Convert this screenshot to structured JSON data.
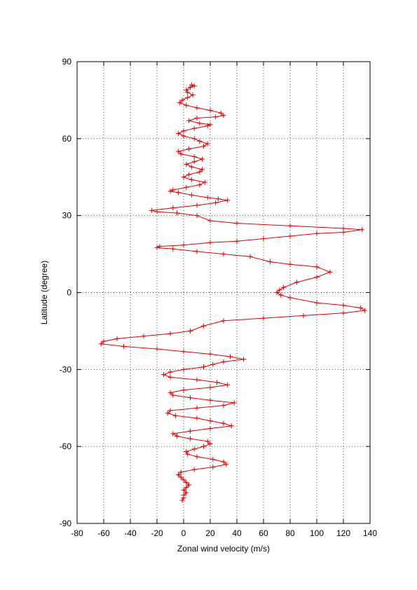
{
  "chart_data": {
    "type": "line",
    "title": "",
    "xlabel": "Zonal wind velocity (m/s)",
    "ylabel": "Latitude (degree)",
    "xlim": [
      -80,
      140
    ],
    "ylim": [
      -90,
      90
    ],
    "xticks": [
      -80,
      -60,
      -40,
      -20,
      0,
      20,
      40,
      60,
      80,
      100,
      120,
      140
    ],
    "yticks": [
      -90,
      -60,
      -30,
      0,
      30,
      60,
      90
    ],
    "grid": true,
    "marker": "plus",
    "series_color": "#e00000",
    "series": [
      {
        "points": [
          [
            6,
            81
          ],
          [
            8,
            80.5
          ],
          [
            5,
            80
          ],
          [
            2,
            79
          ],
          [
            3,
            78
          ],
          [
            7,
            77
          ],
          [
            3,
            76
          ],
          [
            -1,
            75
          ],
          [
            -3,
            74
          ],
          [
            2,
            73
          ],
          [
            10,
            72
          ],
          [
            20,
            71
          ],
          [
            28,
            70
          ],
          [
            30,
            69
          ],
          [
            24,
            68.5
          ],
          [
            10,
            68
          ],
          [
            4,
            67
          ],
          [
            12,
            66
          ],
          [
            20,
            65.5
          ],
          [
            18,
            65
          ],
          [
            8,
            64
          ],
          [
            0,
            63
          ],
          [
            -4,
            62
          ],
          [
            0,
            61
          ],
          [
            8,
            60
          ],
          [
            12,
            59
          ],
          [
            18,
            58
          ],
          [
            15,
            57
          ],
          [
            4,
            56
          ],
          [
            -4,
            55
          ],
          [
            -2,
            54
          ],
          [
            8,
            53
          ],
          [
            14,
            52
          ],
          [
            8,
            51
          ],
          [
            2,
            50
          ],
          [
            6,
            49
          ],
          [
            14,
            48
          ],
          [
            12,
            47
          ],
          [
            4,
            46
          ],
          [
            0,
            45
          ],
          [
            6,
            44
          ],
          [
            16,
            43
          ],
          [
            12,
            42
          ],
          [
            2,
            41
          ],
          [
            -8,
            40
          ],
          [
            -10,
            39.5
          ],
          [
            -4,
            39
          ],
          [
            6,
            38
          ],
          [
            18,
            37
          ],
          [
            26,
            36.5
          ],
          [
            33,
            36
          ],
          [
            24,
            35
          ],
          [
            10,
            34
          ],
          [
            -8,
            33
          ],
          [
            -24,
            32
          ],
          [
            -20,
            31.5
          ],
          [
            -5,
            31
          ],
          [
            10,
            30
          ],
          [
            20,
            28
          ],
          [
            40,
            27
          ],
          [
            80,
            26
          ],
          [
            120,
            25
          ],
          [
            134,
            24.5
          ],
          [
            120,
            23.5
          ],
          [
            100,
            23
          ],
          [
            80,
            22
          ],
          [
            60,
            21
          ],
          [
            40,
            20
          ],
          [
            20,
            19.5
          ],
          [
            0,
            18.5
          ],
          [
            -18,
            18
          ],
          [
            -20,
            17.5
          ],
          [
            -8,
            17
          ],
          [
            10,
            16
          ],
          [
            30,
            15
          ],
          [
            50,
            14
          ],
          [
            65,
            12
          ],
          [
            80,
            11
          ],
          [
            100,
            10
          ],
          [
            110,
            8
          ],
          [
            100,
            6
          ],
          [
            85,
            4
          ],
          [
            75,
            2
          ],
          [
            72,
            1
          ],
          [
            70,
            0
          ],
          [
            73,
            -1
          ],
          [
            80,
            -2
          ],
          [
            100,
            -4
          ],
          [
            120,
            -5
          ],
          [
            133,
            -6
          ],
          [
            136,
            -7
          ],
          [
            120,
            -8
          ],
          [
            90,
            -9
          ],
          [
            60,
            -10
          ],
          [
            30,
            -11
          ],
          [
            15,
            -13
          ],
          [
            5,
            -15
          ],
          [
            -10,
            -16
          ],
          [
            -30,
            -17
          ],
          [
            -50,
            -18
          ],
          [
            -60,
            -19
          ],
          [
            -62,
            -20
          ],
          [
            -45,
            -21
          ],
          [
            -20,
            -22
          ],
          [
            0,
            -23
          ],
          [
            20,
            -24
          ],
          [
            35,
            -25
          ],
          [
            45,
            -26
          ],
          [
            30,
            -27
          ],
          [
            22,
            -28
          ],
          [
            15,
            -29
          ],
          [
            0,
            -30
          ],
          [
            -10,
            -31
          ],
          [
            -15,
            -32
          ],
          [
            -10,
            -33
          ],
          [
            10,
            -34
          ],
          [
            25,
            -35
          ],
          [
            33,
            -36
          ],
          [
            20,
            -37
          ],
          [
            0,
            -38
          ],
          [
            -10,
            -39
          ],
          [
            -8,
            -40
          ],
          [
            5,
            -41
          ],
          [
            20,
            -42
          ],
          [
            38,
            -43
          ],
          [
            30,
            -44
          ],
          [
            10,
            -45
          ],
          [
            -10,
            -46
          ],
          [
            -12,
            -47
          ],
          [
            -6,
            -48
          ],
          [
            10,
            -49
          ],
          [
            20,
            -50
          ],
          [
            30,
            -51
          ],
          [
            36,
            -52
          ],
          [
            20,
            -53
          ],
          [
            5,
            -54
          ],
          [
            -8,
            -55
          ],
          [
            -5,
            -56
          ],
          [
            5,
            -57
          ],
          [
            18,
            -58
          ],
          [
            20,
            -59
          ],
          [
            15,
            -60
          ],
          [
            8,
            -61
          ],
          [
            2,
            -62
          ],
          [
            3,
            -63
          ],
          [
            10,
            -64
          ],
          [
            22,
            -65
          ],
          [
            30,
            -66
          ],
          [
            32,
            -67
          ],
          [
            22,
            -68
          ],
          [
            8,
            -69
          ],
          [
            -2,
            -70
          ],
          [
            -4,
            -71
          ],
          [
            -2,
            -72
          ],
          [
            0,
            -73
          ],
          [
            2,
            -74
          ],
          [
            4,
            -75
          ],
          [
            2,
            -76
          ],
          [
            0,
            -77
          ],
          [
            2,
            -78
          ],
          [
            0,
            -79
          ],
          [
            0,
            -80
          ],
          [
            -1,
            -81
          ]
        ]
      }
    ]
  }
}
